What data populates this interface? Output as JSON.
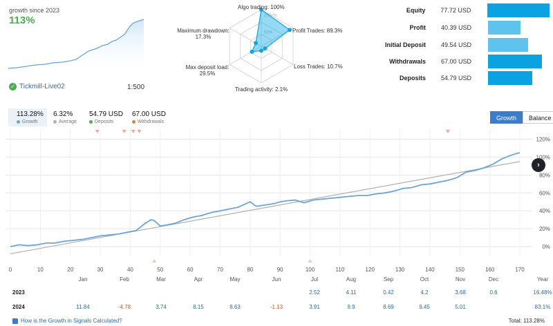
{
  "header": {
    "growth_label": "growth since 2023",
    "growth_value": "113%",
    "account_name": "Tickmill-Live02",
    "leverage": "1:500"
  },
  "radar": {
    "labels": {
      "algo": "Algo trading: 100%",
      "profit_trades": "Profit Trades: 89.3%",
      "loss_trades": "Loss Trades: 10.7%",
      "trading_activity": "Trading activity: 2.1%",
      "max_deposit_load_1": "Max deposit load:",
      "max_deposit_load_2": "29.5%",
      "max_drawdown_1": "Maximum drawdown:",
      "max_drawdown_2": "17.3%"
    },
    "scale_100": "100+%",
    "scale_50": "50%",
    "values": [
      1.0,
      0.893,
      0.107,
      0.021,
      0.295,
      0.173
    ]
  },
  "stats": [
    {
      "name": "Equity",
      "value": "77.72 USD",
      "ratio": 1.0,
      "dark": true
    },
    {
      "name": "Profit",
      "value": "40.39 USD",
      "ratio": 0.52,
      "dark": false
    },
    {
      "name": "Initial Deposit",
      "value": "49.54 USD",
      "ratio": 0.64,
      "dark": false
    },
    {
      "name": "Withdrawals",
      "value": "67.00 USD",
      "ratio": 0.86,
      "dark": true
    },
    {
      "name": "Deposits",
      "value": "54.79 USD",
      "ratio": 0.7,
      "dark": true
    }
  ],
  "summary": {
    "growth": {
      "num": "113.28%",
      "lbl": "Growth"
    },
    "average": {
      "num": "6.32%",
      "lbl": "Average"
    },
    "deposits": {
      "num": "54.79 USD",
      "lbl": "Deposits"
    },
    "withdrawals": {
      "num": "67.00 USD",
      "lbl": "Withdrawals"
    }
  },
  "tabs": {
    "growth": "Growth",
    "balance": "Balance"
  },
  "colors": {
    "accent": "#3d7cc9",
    "line": "#6aa4df",
    "trend": "#b0b0b0",
    "green": "#4bae4f",
    "orange": "#e8803a"
  },
  "chart_data": {
    "type": "line",
    "x_ticks": [
      "0",
      "10",
      "20",
      "30",
      "40",
      "50",
      "60",
      "70",
      "80",
      "90",
      "100",
      "110",
      "120",
      "130",
      "140",
      "150",
      "160",
      "170"
    ],
    "x_range": [
      0,
      173
    ],
    "y_ticks": [
      "120%",
      "100%",
      "80%",
      "60%",
      "40%",
      "20%",
      "0%"
    ],
    "y_range": [
      -10,
      125
    ],
    "series": [
      {
        "name": "Growth",
        "x": [
          0,
          3,
          6,
          9,
          12,
          15,
          18,
          21,
          24,
          27,
          30,
          33,
          36,
          39,
          42,
          45,
          47,
          48,
          50,
          52,
          55,
          58,
          61,
          64,
          67,
          70,
          73,
          76,
          78,
          80,
          82,
          84,
          86,
          88,
          90,
          92,
          95,
          98,
          101,
          104,
          107,
          110,
          113,
          116,
          119,
          122,
          125,
          128,
          131,
          134,
          137,
          140,
          143,
          146,
          149,
          152,
          155,
          158,
          161,
          164,
          167,
          170
        ],
        "y": [
          0,
          2,
          1,
          2,
          4,
          4,
          6,
          7,
          8,
          10,
          12,
          13,
          14,
          16,
          18,
          26,
          30,
          29,
          23,
          24,
          26,
          30,
          33,
          35,
          38,
          40,
          42,
          44,
          47,
          50,
          45,
          46,
          47,
          48,
          50,
          51,
          52,
          49,
          52,
          53,
          54,
          55,
          56,
          57,
          57,
          59,
          60,
          62,
          65,
          66,
          69,
          70,
          72,
          74,
          77,
          83,
          85,
          88,
          92,
          98,
          102,
          105
        ]
      },
      {
        "name": "Trend",
        "x": [
          0,
          170
        ],
        "y": [
          -8,
          95
        ]
      }
    ],
    "deposit_markers_x": [
      29,
      38,
      41,
      43,
      146
    ],
    "withdrawal_markers_x": [
      48,
      100
    ],
    "xlabel": "",
    "ylabel": ""
  },
  "monthly": {
    "months": [
      "Jan",
      "Feb",
      "Mar",
      "Apr",
      "May",
      "Jun",
      "Jul",
      "Aug",
      "Sep",
      "Oct",
      "Nov",
      "Dec",
      "Year"
    ],
    "rows": [
      {
        "year": "2023",
        "cells": [
          "",
          "",
          "",
          "",
          "",
          "",
          "2.52",
          "4.11",
          "0.42",
          "4.2",
          "3.68",
          "0.6",
          "16.48%"
        ]
      },
      {
        "year": "2024",
        "cells": [
          "11.84",
          "-4.78",
          "3.74",
          "8.15",
          "8.63",
          "-1.13",
          "3.91",
          "9.9",
          "8.69",
          "9.45",
          "5.01",
          "",
          "83.1%"
        ]
      }
    ]
  },
  "footer": {
    "link": "How is the Growth in Signals Calculated?",
    "total": "Total: 113.28%"
  }
}
